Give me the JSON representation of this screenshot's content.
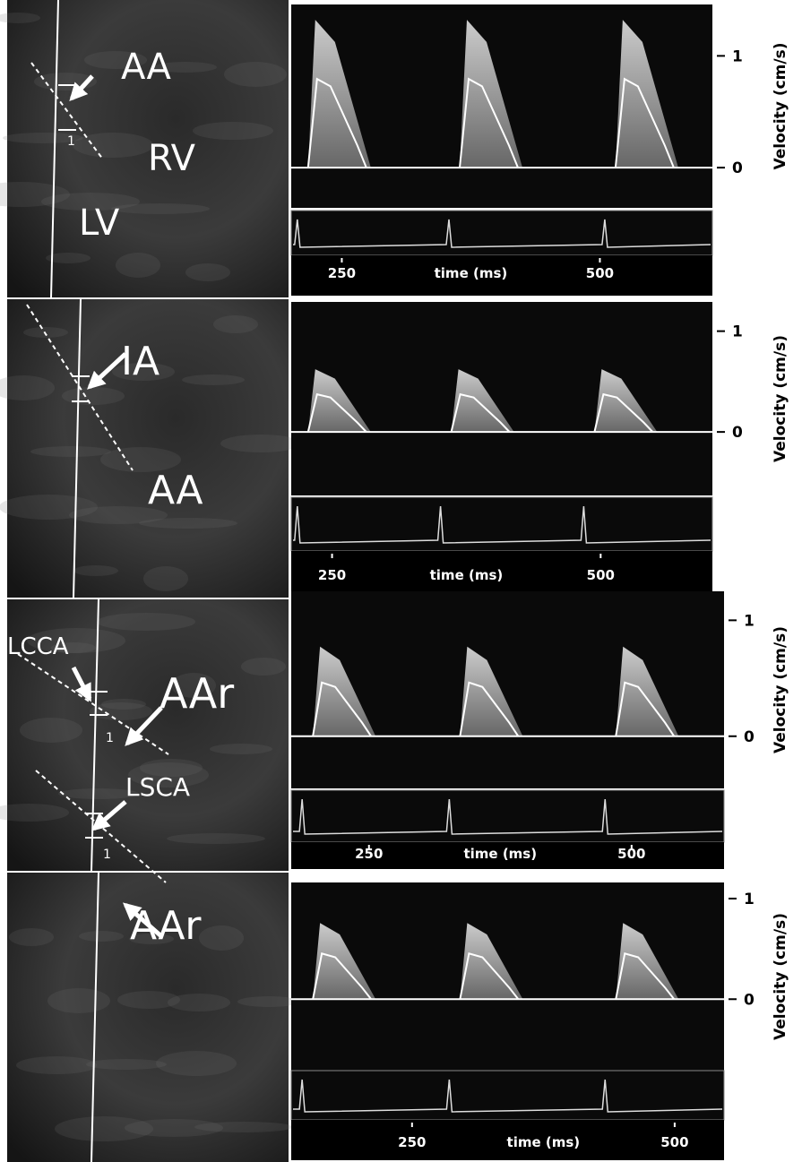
{
  "panels": [
    {
      "image_labels": [
        "AA",
        "RV",
        "LV"
      ],
      "gate_label": "1",
      "y_label": "Velocity (cm/s)",
      "yticks": [
        0,
        1
      ],
      "ylim": [
        -0.36,
        1.46
      ],
      "x_label": "time (ms)",
      "xticks": [
        250,
        500
      ],
      "xlim": [
        201,
        609
      ]
    },
    {
      "image_labels": [
        "IA",
        "AA"
      ],
      "y_label": "Velocity (cm/s)",
      "yticks": [
        0,
        1
      ],
      "ylim": [
        -0.63,
        1.29
      ],
      "x_label": "time (ms)",
      "xticks": [
        250,
        500
      ],
      "xlim": [
        212,
        604
      ]
    },
    {
      "image_labels": [
        "LCCA",
        "AAr"
      ],
      "gate_label": "1",
      "y_label": "Velocity (cm/s)",
      "yticks": [
        0,
        1
      ],
      "ylim": [
        -0.45,
        1.25
      ],
      "x_label": "time (ms)",
      "xticks": [
        250,
        500
      ],
      "xlim": [
        176,
        588
      ]
    },
    {
      "image_labels": [
        "LSCA",
        "AAr"
      ],
      "gate_label": "1",
      "y_label": "Velocity (cm/s)",
      "yticks": [
        0,
        1
      ],
      "ylim": [
        -0.71,
        1.16
      ],
      "x_label": "time (ms)",
      "xticks": [
        250,
        500
      ],
      "xlim": [
        135,
        547
      ]
    }
  ]
}
